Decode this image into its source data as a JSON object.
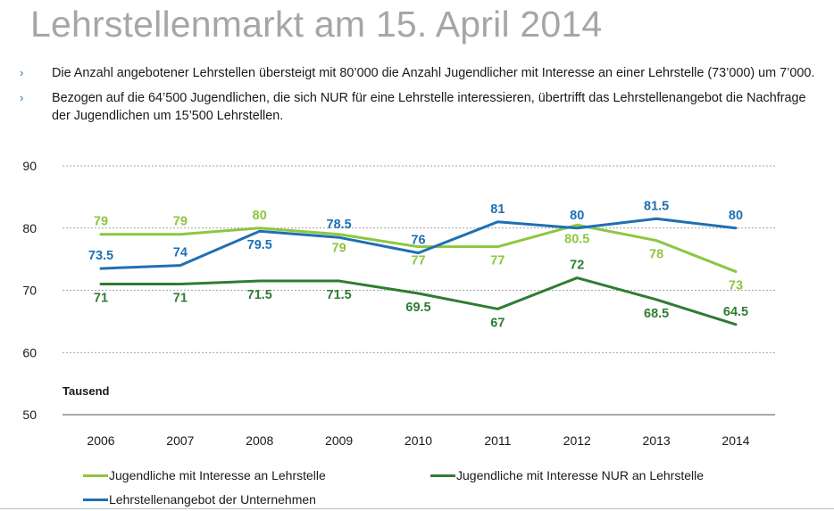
{
  "slide": {
    "title": "Lehrstellenmarkt am 15. April 2014",
    "bullets": [
      "Die Anzahl angebotener Lehrstellen übersteigt mit 80’000 die Anzahl Jugendlicher mit Interesse an einer Lehrstelle (73’000) um 7’000.",
      "Bezogen auf die 64’500 Jugendlichen, die sich NUR für eine Lehrstelle interessieren, übertrifft das Lehrstellenangebot die Nachfrage der Jugendlichen um 15’500 Lehrstellen."
    ],
    "bullet_glyph": "›"
  },
  "chart_data": {
    "type": "line",
    "categories": [
      "2006",
      "2007",
      "2008",
      "2009",
      "2010",
      "2011",
      "2012",
      "2013",
      "2014"
    ],
    "ylim": [
      50,
      90
    ],
    "yticks": [
      50,
      60,
      70,
      80,
      90
    ],
    "ylabel": "Tausend",
    "grid": true,
    "series": [
      {
        "name": "Jugendliche mit Interesse an Lehrstelle",
        "color": "#8dc63f",
        "values": [
          79,
          79,
          80,
          79,
          77,
          77,
          80.5,
          78,
          73
        ],
        "labels": [
          "79",
          "79",
          "80",
          "79",
          "77",
          "77",
          "80.5",
          "78",
          "73"
        ]
      },
      {
        "name": "Jugendliche mit Interesse NUR an Lehrstelle",
        "color": "#2e7d32",
        "values": [
          71,
          71,
          71.5,
          71.5,
          69.5,
          67,
          72,
          68.5,
          64.5
        ],
        "labels": [
          "71",
          "71",
          "71.5",
          "71.5",
          "69.5",
          "67",
          "72",
          "68.5",
          "64.5"
        ]
      },
      {
        "name": "Lehrstellenangebot der Unternehmen",
        "color": "#1f6fb4",
        "values": [
          73.5,
          74,
          79.5,
          78.5,
          76,
          81,
          80,
          81.5,
          80
        ],
        "labels": [
          "73.5",
          "74",
          "79.5",
          "78.5",
          "76",
          "81",
          "80",
          "81.5",
          "80"
        ]
      }
    ]
  }
}
